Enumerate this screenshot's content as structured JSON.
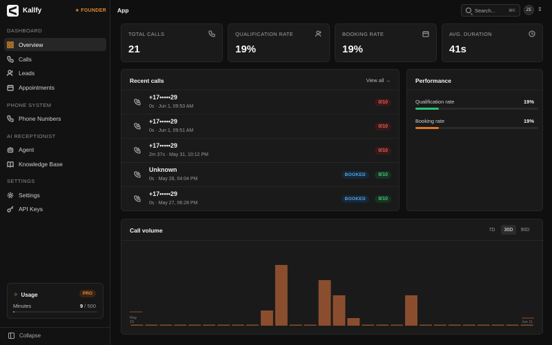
{
  "brand": {
    "name": "Kallfy",
    "badge": "FOUNDER"
  },
  "topbar": {
    "title": "App",
    "search_placeholder": "Search...",
    "search_shortcut": "⌘K",
    "avatar_initials": "ZE"
  },
  "sidebar": {
    "sections": [
      {
        "title": "DASHBOARD",
        "items": [
          {
            "label": "Overview",
            "icon": "grid-icon",
            "active": true
          },
          {
            "label": "Calls",
            "icon": "phone-icon"
          },
          {
            "label": "Leads",
            "icon": "users-icon"
          },
          {
            "label": "Appointments",
            "icon": "calendar-icon"
          }
        ]
      },
      {
        "title": "PHONE SYSTEM",
        "items": [
          {
            "label": "Phone Numbers",
            "icon": "phone-icon"
          }
        ]
      },
      {
        "title": "AI RECEPTIONIST",
        "items": [
          {
            "label": "Agent",
            "icon": "bot-icon"
          },
          {
            "label": "Knowledge Base",
            "icon": "book-icon"
          }
        ]
      },
      {
        "title": "SETTINGS",
        "items": [
          {
            "label": "Settings",
            "icon": "gear-icon"
          },
          {
            "label": "API Keys",
            "icon": "key-icon"
          }
        ]
      }
    ],
    "usage": {
      "title": "Usage",
      "plan": "PRO",
      "minutes_label": "Minutes",
      "used": "9",
      "limit": "500",
      "used_fraction": 0.018
    },
    "collapse_label": "Collapse"
  },
  "stats": [
    {
      "label": "TOTAL CALLS",
      "value": "21",
      "icon": "phone-icon"
    },
    {
      "label": "QUALIFICATION RATE",
      "value": "19%",
      "icon": "users-icon"
    },
    {
      "label": "BOOKING RATE",
      "value": "19%",
      "icon": "calendar-icon"
    },
    {
      "label": "AVG. DURATION",
      "value": "41s",
      "icon": "clock-icon"
    }
  ],
  "recent_calls": {
    "title": "Recent calls",
    "view_all": "View all →",
    "rows": [
      {
        "number": "+17•••••29",
        "meta": "0s · Jun 1, 09:53 AM",
        "score": "0/10",
        "status": ""
      },
      {
        "number": "+17•••••29",
        "meta": "0s · Jun 1, 09:51 AM",
        "score": "0/10",
        "status": ""
      },
      {
        "number": "+17•••••29",
        "meta": "2m 37s · May 31, 10:12 PM",
        "score": "0/10",
        "status": ""
      },
      {
        "number": "Unknown",
        "meta": "0s · May 28, 04:04 PM",
        "score": "8/10",
        "status": "BOOKED"
      },
      {
        "number": "+17•••••29",
        "meta": "0s · May 27, 06:28 PM",
        "score": "8/10",
        "status": "BOOKED"
      }
    ]
  },
  "performance": {
    "title": "Performance",
    "metrics": [
      {
        "label": "Qualification rate",
        "value": "19%",
        "fraction": 0.19,
        "color": "#2fbf7a"
      },
      {
        "label": "Booking rate",
        "value": "19%",
        "fraction": 0.19,
        "color": "#e0772c"
      }
    ]
  },
  "chart_data": {
    "type": "bar",
    "title": "Call volume",
    "ranges": [
      "7D",
      "30D",
      "90D"
    ],
    "active_range": "30D",
    "x_start_label": "May 15",
    "x_end_label": "Jun 11",
    "values": [
      0,
      0,
      0,
      0,
      0,
      0,
      0,
      0,
      0,
      1,
      4,
      0,
      0,
      3,
      2,
      0.5,
      0,
      0,
      0,
      2,
      0,
      0,
      0,
      0,
      0,
      0,
      0,
      0
    ],
    "ylim": [
      0,
      4
    ],
    "bar_color": "#8a4e2f",
    "grid": false
  }
}
